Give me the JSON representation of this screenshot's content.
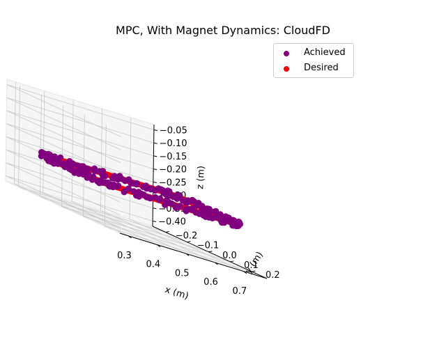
{
  "chart_data": {
    "type": "scatter",
    "projection": "3d",
    "title": "MPC, With Magnet Dynamics: CloudFD",
    "xlabel": "x (m)",
    "ylabel": "y (m)",
    "zlabel": "z (m)",
    "xlim": [
      0.27,
      0.78
    ],
    "ylim": [
      -0.26,
      0.27
    ],
    "zlim": [
      -0.42,
      -0.03
    ],
    "xticks": [
      "0.3",
      "0.4",
      "0.5",
      "0.6",
      "0.7"
    ],
    "yticks": [
      "−0.2",
      "−0.1",
      "0.0",
      "0.1",
      "0.2"
    ],
    "zticks": [
      "−0.05",
      "−0.10",
      "−0.15",
      "−0.20",
      "−0.25",
      "−0.30",
      "−0.35",
      "−0.40"
    ],
    "grid": true,
    "legend_position": "upper right",
    "series": [
      {
        "name": "Achieved",
        "color": "#800080",
        "trajectory": "closed stadium-shaped loop, horizontal plane, noisy",
        "center": {
          "x": 0.525,
          "y": 0.02,
          "z": -0.26
        },
        "half_length_x": 0.2,
        "radius_y": 0.16,
        "noise": 0.012,
        "n_points": 240
      },
      {
        "name": "Desired",
        "color": "#ff0000",
        "trajectory": "closed stadium-shaped loop, horizontal plane",
        "center": {
          "x": 0.525,
          "y": 0.02,
          "z": -0.26
        },
        "half_length_x": 0.2,
        "radius_y": 0.15,
        "noise": 0,
        "n_points": 400
      }
    ]
  }
}
